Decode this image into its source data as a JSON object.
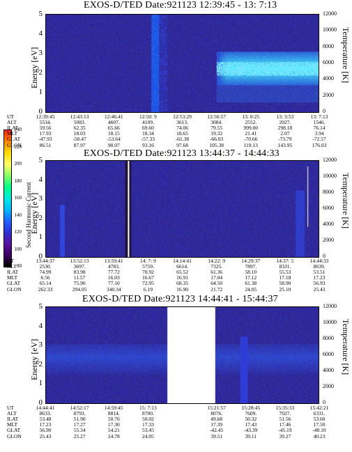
{
  "colors": {
    "background_plot": "#2a1f86",
    "accent_cyan": "#6ee6ff"
  },
  "colorbar": {
    "title": "Second Harmonic Current",
    "ticks": [
      "240",
      "220",
      "200",
      "180",
      "160",
      "140",
      "120",
      "100",
      "80"
    ],
    "colors": [
      "#ff2020",
      "#ff8800",
      "#ffdd00",
      "#ffff66",
      "#88ff66",
      "#00ff88",
      "#00e8e0",
      "#00b8ff",
      "#2060ff",
      "#3030d0",
      "#5a10a0",
      "#3a0060",
      "#000000"
    ]
  },
  "panels": [
    {
      "title": "EXOS-D/TED   Date:921123  12:39:45 - 13: 7:13",
      "y_left_label": "Energy [eV]",
      "y_right_label": "Temperature [K]",
      "y_left_ticks": [
        "5",
        "4",
        "3",
        "2",
        "1",
        "0"
      ],
      "y_right_ticks": [
        "12000",
        "10000",
        "8000",
        "6000",
        "4000",
        "2000",
        "0"
      ],
      "table_rows": [
        "UT",
        "ALT",
        "ILAT",
        "MLT",
        "GLAT",
        "GLON"
      ],
      "table_columns": [
        [
          "12:39:45",
          "5534.",
          "59.56",
          "17.93",
          "-47.93",
          "86.51"
        ],
        [
          "12:43:13",
          "5083.",
          "62.35",
          "18.03",
          "-50.47",
          "87.97"
        ],
        [
          "12:46:41",
          "4607.",
          "65.66",
          "18.15",
          "-53.64",
          "90.07"
        ],
        [
          "12:50: 9",
          "4109.",
          "69.60",
          "18.34",
          "-57.33",
          "93.16"
        ],
        [
          "12:53:29",
          "3613.",
          "74.06",
          "18.65",
          "-61.38",
          "97.68"
        ],
        [
          "12:56:57",
          "3084.",
          "79.55",
          "19.32",
          "-66.03",
          "105.38"
        ],
        [
          "13: 0:25",
          "2552.",
          "999.00",
          "21.41",
          "-70.66",
          "119.13"
        ],
        [
          "13: 3:53",
          "2027.",
          "298.18",
          "2.07",
          "-73.79",
          "143.95"
        ],
        [
          "13: 7:13",
          "1546.",
          "76.14",
          "3.94",
          "-72.57",
          "176.03"
        ]
      ]
    },
    {
      "title": "EXOS-D/TED   Date:921123  13:44:37 - 14:44:33",
      "y_left_label": "Energy [eV]",
      "y_right_label": "Temperature [K]",
      "y_left_ticks": [
        "5",
        "4",
        "3",
        "2",
        "1",
        "0"
      ],
      "y_right_ticks": [
        "12000",
        "10000",
        "8000",
        "6000",
        "4000",
        "2000",
        "0"
      ],
      "table_rows": [
        "UT",
        "ALT",
        "ILAT",
        "MLT",
        "GLAT",
        "GLON"
      ],
      "table_columns": [
        [
          "13:44:37",
          "2530.",
          "74.99",
          "6.56",
          "65.14",
          "262.33"
        ],
        [
          "13:52:13",
          "3697.",
          "83.98",
          "11.57",
          "75.90",
          "294.05"
        ],
        [
          "13:59:41",
          "4783.",
          "77.72",
          "16.03",
          "77.10",
          "340.34"
        ],
        [
          "14: 7: 9",
          "5759.",
          "70.92",
          "16.67",
          "72.95",
          "6.19"
        ],
        [
          "14:14:41",
          "6614.",
          "65.52",
          "16.91",
          "68.35",
          "16.90"
        ],
        [
          "14:22: 9",
          "7325.",
          "61.36",
          "17.04",
          "64.50",
          "21.72"
        ],
        [
          "14:29:37",
          "7897.",
          "58.10",
          "17.12",
          "61.38",
          "24.05"
        ],
        [
          "14:37: 5",
          "8331.",
          "55.53",
          "17.18",
          "58.90",
          "25.10"
        ],
        [
          "14:44:33",
          "8639.",
          "53.51",
          "17.23",
          "56.93",
          "25.43"
        ]
      ]
    },
    {
      "title": "EXOS-D/TED   Date:921123  14:44:41 - 15:44:37",
      "y_left_label": "Energy [eV]",
      "y_right_label": "Temperature [K]",
      "y_left_ticks": [
        "5",
        "4",
        "3",
        "2",
        "1",
        "0"
      ],
      "y_right_ticks": [
        "12000",
        "10000",
        "8000",
        "6000",
        "4000",
        "2000",
        "0"
      ],
      "table_rows": [
        "UT",
        "ALT",
        "ILAT",
        "MLT",
        "GLAT",
        "GLON"
      ],
      "table_columns": [
        [
          "14:44:41",
          "8633.",
          "53.48",
          "17.23",
          "56.90",
          "25.43"
        ],
        [
          "14:52:17",
          "8793.",
          "51.90",
          "17.27",
          "55.34",
          "25.27"
        ],
        [
          "14:59:45",
          "8814.",
          "50.76",
          "17.30",
          "54.21",
          "24.78"
        ],
        [
          "15: 7:13",
          "8700.",
          "50.02",
          "17.33",
          "53.45",
          "24.05"
        ],
        [
          "",
          "",
          "",
          "",
          "",
          ""
        ],
        [
          "15:21:57",
          "8076.",
          "49.68",
          "17.39",
          "-42.45",
          "39.51"
        ],
        [
          "15:28:45",
          "7609.",
          "50.32",
          "17.43",
          "-43.39",
          "39.11"
        ],
        [
          "15:35:33",
          "7027.",
          "51.56",
          "17.46",
          "-45.19",
          "39.27"
        ],
        [
          "15:42:21",
          "6331.",
          "53.60",
          "17.50",
          "-48.10",
          "40.23"
        ]
      ]
    }
  ],
  "chart_data": [
    {
      "type": "heatmap",
      "title": "EXOS-D/TED   Date:921123  12:39:45 - 13: 7:13",
      "ylabel": "Energy [eV]",
      "ylabel_right": "Temperature [K]",
      "ylim": [
        0,
        5
      ],
      "ylim_right": [
        0,
        12000
      ],
      "x_ticks": [
        "12:39:45",
        "12:43:13",
        "12:46:41",
        "12:50: 9",
        "12:53:29",
        "12:56:57",
        "13: 0:25",
        "13: 3:53",
        "13: 7:13"
      ]
    },
    {
      "type": "heatmap",
      "title": "EXOS-D/TED   Date:921123  13:44:37 - 14:44:33",
      "ylabel": "Energy [eV]",
      "ylabel_right": "Temperature [K]",
      "ylim": [
        0,
        5
      ],
      "ylim_right": [
        0,
        12000
      ],
      "x_ticks": [
        "13:44:37",
        "13:52:13",
        "13:59:41",
        "14: 7: 9",
        "14:14:41",
        "14:22: 9",
        "14:29:37",
        "14:37: 5",
        "14:44:33"
      ]
    },
    {
      "type": "heatmap",
      "title": "EXOS-D/TED   Date:921123  14:44:41 - 15:44:37",
      "ylabel": "Energy [eV]",
      "ylabel_right": "Temperature [K]",
      "ylim": [
        0,
        5
      ],
      "ylim_right": [
        0,
        12000
      ],
      "x_ticks": [
        "14:44:41",
        "14:52:17",
        "14:59:45",
        "15: 7:13",
        "",
        "15:21:57",
        "15:28:45",
        "15:35:33",
        "15:42:21"
      ]
    }
  ]
}
